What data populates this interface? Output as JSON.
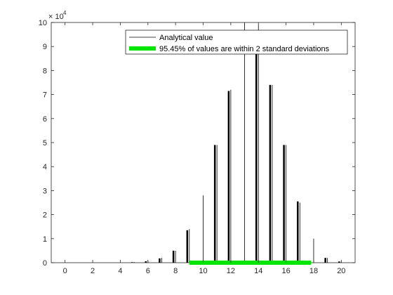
{
  "chart_data": {
    "type": "bar",
    "title": "",
    "xlabel": "",
    "ylabel": "",
    "xlim": [
      -1,
      21
    ],
    "ylim": [
      0,
      100000
    ],
    "x_ticks": [
      0,
      2,
      4,
      6,
      8,
      10,
      12,
      14,
      16,
      18,
      20
    ],
    "y_ticks": [
      0,
      10000,
      20000,
      30000,
      40000,
      50000,
      60000,
      70000,
      80000,
      90000,
      100000
    ],
    "x_tick_labels": [
      "0",
      "2",
      "4",
      "6",
      "8",
      "10",
      "12",
      "14",
      "16",
      "18",
      "20"
    ],
    "y_tick_labels": [
      "0",
      "1",
      "2",
      "3",
      "4",
      "5",
      "6",
      "7",
      "8",
      "9",
      "10"
    ],
    "y_exponent_label": "× 10",
    "y_exponent_power": "4",
    "grid": false,
    "legend_position": "top-right",
    "series": [
      {
        "name": "Analytical value",
        "color": "#000000",
        "style": "thin line",
        "x": [
          0,
          1,
          2,
          3,
          4,
          5,
          6,
          7,
          8,
          9,
          10,
          11,
          12,
          13,
          14,
          15,
          16,
          17,
          18,
          19,
          20
        ],
        "values": [
          0,
          0,
          0,
          0,
          0,
          300,
          900,
          2000,
          5000,
          14000,
          28000,
          49000,
          72000,
          100000,
          99000,
          74000,
          49000,
          25000,
          10000,
          2000,
          500
        ]
      },
      {
        "name": "",
        "color": "#000000",
        "style": "thick bar",
        "x": [
          5,
          6,
          7,
          8,
          9,
          10,
          11,
          12,
          13,
          14,
          15,
          16,
          17,
          18,
          19,
          20
        ],
        "values": [
          200,
          600,
          1800,
          5000,
          13500,
          0,
          49000,
          71500,
          0,
          88000,
          74000,
          49000,
          25500,
          0,
          2000,
          500
        ]
      },
      {
        "name": "95.45% of values are within 2 standard deviations",
        "color": "#00e600",
        "style": "thick horizontal band",
        "x_range": [
          9,
          17.8
        ],
        "y": 0
      }
    ]
  }
}
